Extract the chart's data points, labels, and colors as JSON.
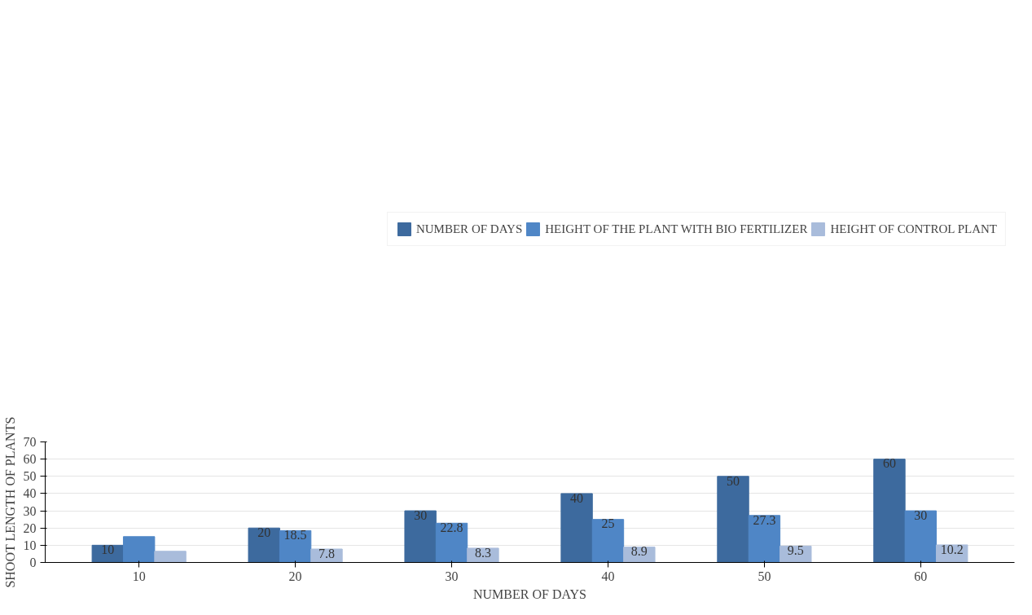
{
  "chart_data": {
    "type": "bar",
    "xlabel": "NUMBER OF DAYS",
    "ylabel": "SHOOT LENGTH OF PLANTS",
    "categories": [
      "10",
      "20",
      "30",
      "40",
      "50",
      "60"
    ],
    "ylim": [
      0,
      70
    ],
    "yticks": [
      0,
      10,
      20,
      30,
      40,
      50,
      60,
      70
    ],
    "grid": "y",
    "legend": "top",
    "series": [
      {
        "name": "NUMBER OF DAYS",
        "color": "#3d6a9e",
        "values": [
          10,
          20,
          30,
          40,
          50,
          60
        ],
        "value_labels": [
          "10",
          "20",
          "30",
          "40",
          "50",
          "60"
        ]
      },
      {
        "name": "HEIGHT OF THE PLANT WITH BIO FERTILIZER",
        "color": "#4f86c6",
        "values": [
          15,
          18.5,
          22.8,
          25,
          27.3,
          30
        ],
        "value_labels": [
          null,
          "18.5",
          "22.8",
          "25",
          "27.3",
          "30"
        ]
      },
      {
        "name": "HEIGHT OF CONTROL PLANT",
        "color": "#a9bcdb",
        "values": [
          6.5,
          7.8,
          8.3,
          8.9,
          9.5,
          10.2
        ],
        "value_labels": [
          null,
          "7.8",
          "8.3",
          "8.9",
          "9.5",
          "10.2"
        ]
      }
    ]
  }
}
